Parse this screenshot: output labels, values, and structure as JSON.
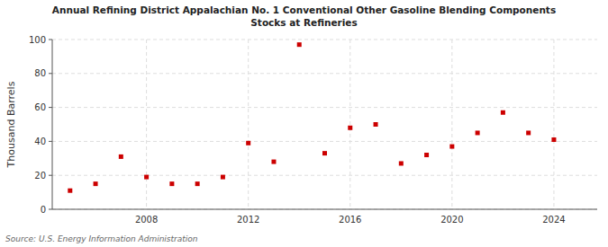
{
  "chart_data": {
    "type": "scatter",
    "title": "Annual Refining District Appalachian No. 1 Conventional Other Gasoline Blending Components\nStocks at Refineries",
    "y_label": "Thousand Barrels",
    "annotations": [
      "Source: U.S. Energy Information Administration"
    ],
    "x": [
      2005,
      2006,
      2007,
      2008,
      2009,
      2010,
      2011,
      2012,
      2013,
      2014,
      2015,
      2016,
      2017,
      2018,
      2019,
      2020,
      2021,
      2022,
      2023,
      2024
    ],
    "values": [
      11,
      15,
      31,
      19,
      15,
      15,
      19,
      39,
      28,
      97,
      33,
      48,
      50,
      27,
      32,
      37,
      45,
      57,
      45,
      41
    ],
    "color": "#cc0000",
    "marker": "square",
    "xlim": [
      2004.3,
      2025.7
    ],
    "ylim": [
      0,
      100
    ],
    "xticks": [
      2008,
      2012,
      2016,
      2020,
      2024
    ],
    "yticks": [
      0,
      20,
      40,
      60,
      80,
      100
    ],
    "grid": true
  }
}
